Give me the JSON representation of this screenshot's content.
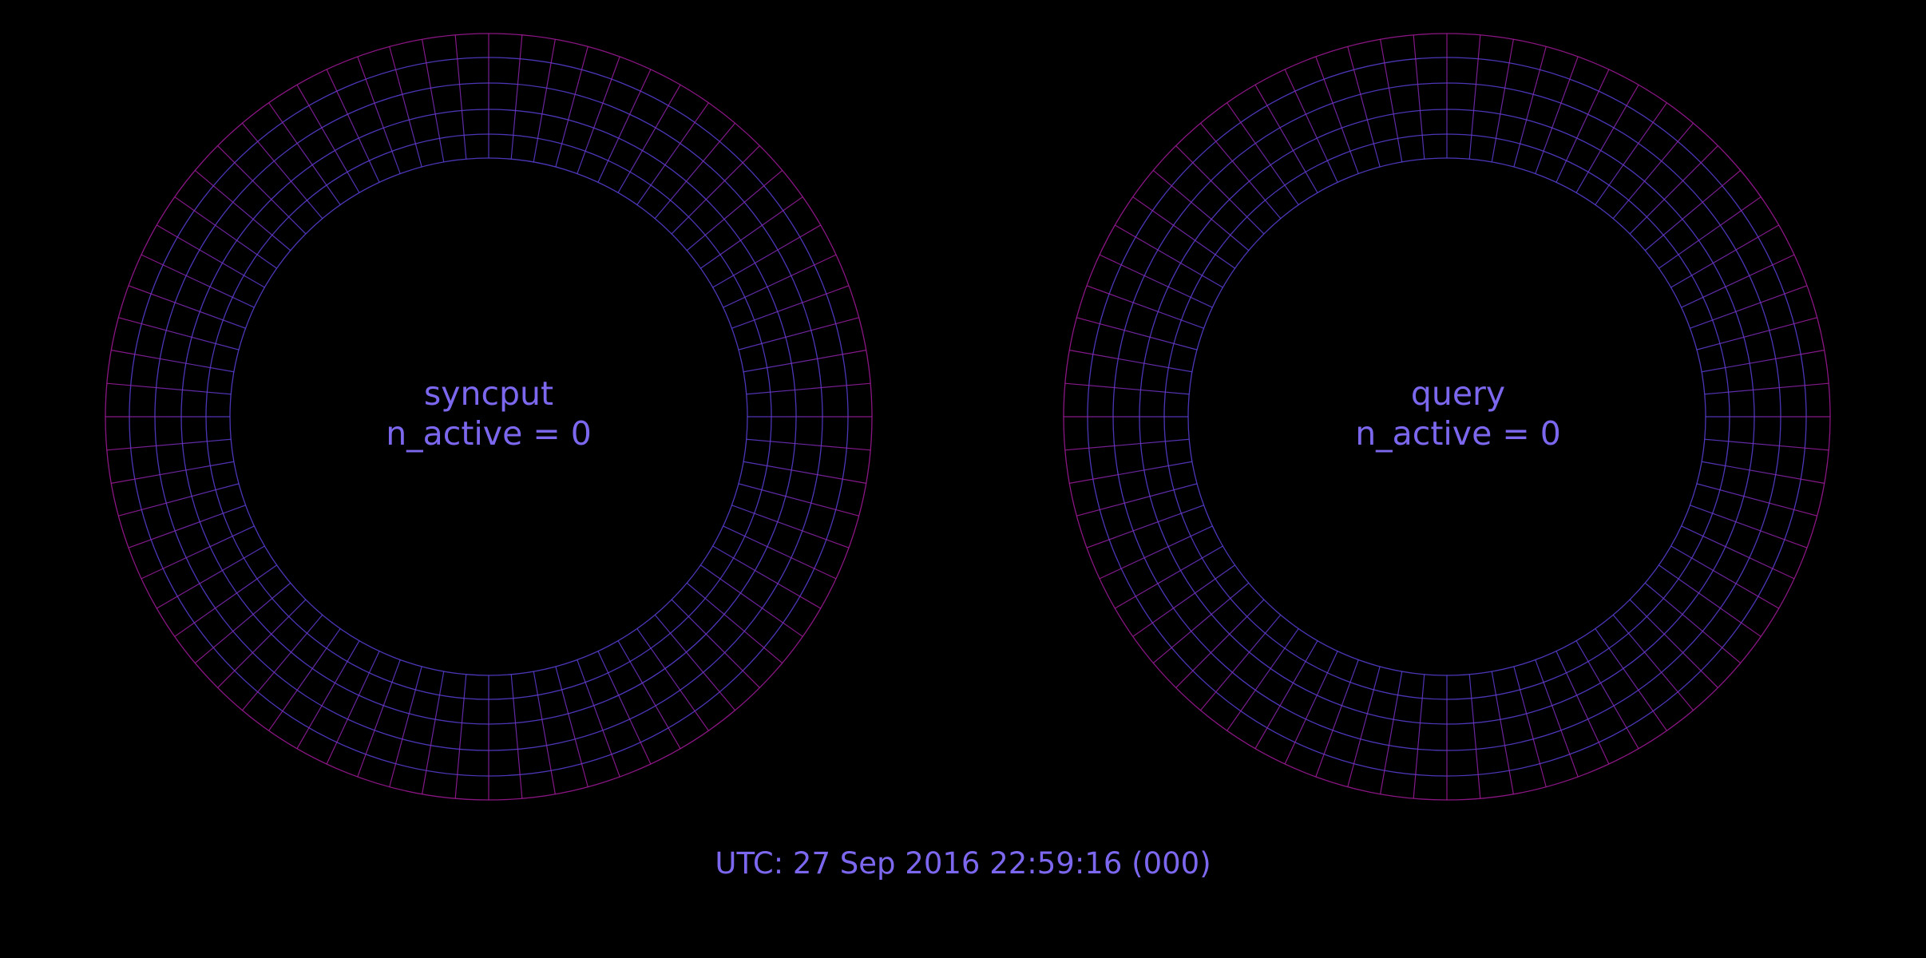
{
  "rings": [
    {
      "name": "syncput",
      "active_label": "n_active = 0",
      "n_active": 0
    },
    {
      "name": "query",
      "active_label": "n_active = 0",
      "n_active": 0
    }
  ],
  "timestamp": "UTC: 27 Sep 2016 22:59:16 (000)",
  "colors": {
    "background": "#000000",
    "text": "#7b68ee",
    "grid_inner": "#5a3fd6",
    "grid_outer": "#a21a9a"
  }
}
